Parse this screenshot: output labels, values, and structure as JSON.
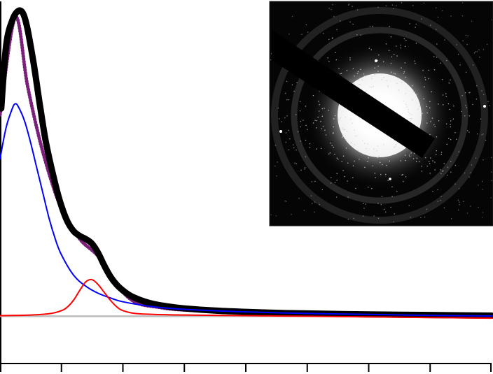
{
  "chart_data": {
    "type": "line",
    "title": "",
    "xlabel": "",
    "ylabel": "",
    "xlim": [
      0,
      8
    ],
    "ylim": [
      -0.15,
      1.0
    ],
    "grid": false,
    "legend": "none",
    "tick_labels_shown": false,
    "x_ticks": [
      0,
      1,
      2,
      3,
      4,
      5,
      6,
      7,
      8
    ],
    "baseline_y": 0,
    "baseline_color": "#bbbbbb",
    "inset": {
      "kind": "electron diffraction pattern image",
      "position": "top-right"
    },
    "series": [
      {
        "color": "#7a1f7a",
        "style": "dotted",
        "x": [
          0,
          0.25,
          0.45,
          0.7,
          1.0,
          1.3,
          1.6,
          1.9,
          2.2,
          2.6,
          3.0,
          4.0,
          5.0,
          6.0,
          7.0,
          8.0
        ],
        "values": [
          0.64,
          0.95,
          0.73,
          0.52,
          0.34,
          0.245,
          0.19,
          0.1,
          0.045,
          0.028,
          0.02,
          0.012,
          0.008,
          0.005,
          0.003,
          0.001
        ]
      },
      {
        "color": "#000000",
        "style": "thick",
        "x": [
          0.02,
          0.1,
          0.2,
          0.3,
          0.38,
          0.45,
          0.55,
          0.65,
          0.75,
          0.9,
          1.0,
          1.1,
          1.2,
          1.3,
          1.4,
          1.5,
          1.6,
          1.7,
          1.8,
          1.9,
          2.0,
          2.1,
          2.2,
          2.35,
          2.5,
          2.7,
          3.0,
          3.5,
          4.0,
          4.5,
          5.0,
          6.0,
          7.0,
          8.0
        ],
        "values": [
          0.66,
          0.86,
          0.94,
          0.97,
          0.96,
          0.91,
          0.8,
          0.67,
          0.55,
          0.42,
          0.35,
          0.3,
          0.27,
          0.255,
          0.245,
          0.23,
          0.2,
          0.16,
          0.125,
          0.1,
          0.082,
          0.068,
          0.058,
          0.047,
          0.039,
          0.032,
          0.025,
          0.018,
          0.014,
          0.011,
          0.009,
          0.006,
          0.004,
          0.002
        ]
      },
      {
        "color": "#0000ff",
        "style": "thin",
        "x": [
          0,
          0.1,
          0.2,
          0.25,
          0.3,
          0.4,
          0.5,
          0.6,
          0.7,
          0.8,
          0.9,
          1.0,
          1.2,
          1.4,
          1.6,
          1.8,
          2.0,
          2.5,
          3.0,
          4.0,
          5.0,
          6.0,
          7.0,
          8.0
        ],
        "values": [
          0.5,
          0.6,
          0.66,
          0.675,
          0.665,
          0.62,
          0.55,
          0.47,
          0.39,
          0.31,
          0.245,
          0.195,
          0.13,
          0.095,
          0.073,
          0.058,
          0.046,
          0.03,
          0.022,
          0.014,
          0.009,
          0.006,
          0.003,
          0.001
        ]
      },
      {
        "color": "#ff0000",
        "style": "thin",
        "x": [
          0,
          0.5,
          0.8,
          1.0,
          1.1,
          1.2,
          1.3,
          1.4,
          1.5,
          1.6,
          1.7,
          1.8,
          1.9,
          2.0,
          2.2,
          2.5,
          3.0,
          4.0,
          5.0,
          6.0,
          7.0,
          8.0
        ],
        "values": [
          0.002,
          0.004,
          0.008,
          0.018,
          0.03,
          0.052,
          0.083,
          0.11,
          0.116,
          0.1,
          0.075,
          0.05,
          0.03,
          0.018,
          0.009,
          0.006,
          0.004,
          0.002,
          0.0,
          -0.002,
          -0.004,
          -0.006
        ]
      }
    ]
  }
}
